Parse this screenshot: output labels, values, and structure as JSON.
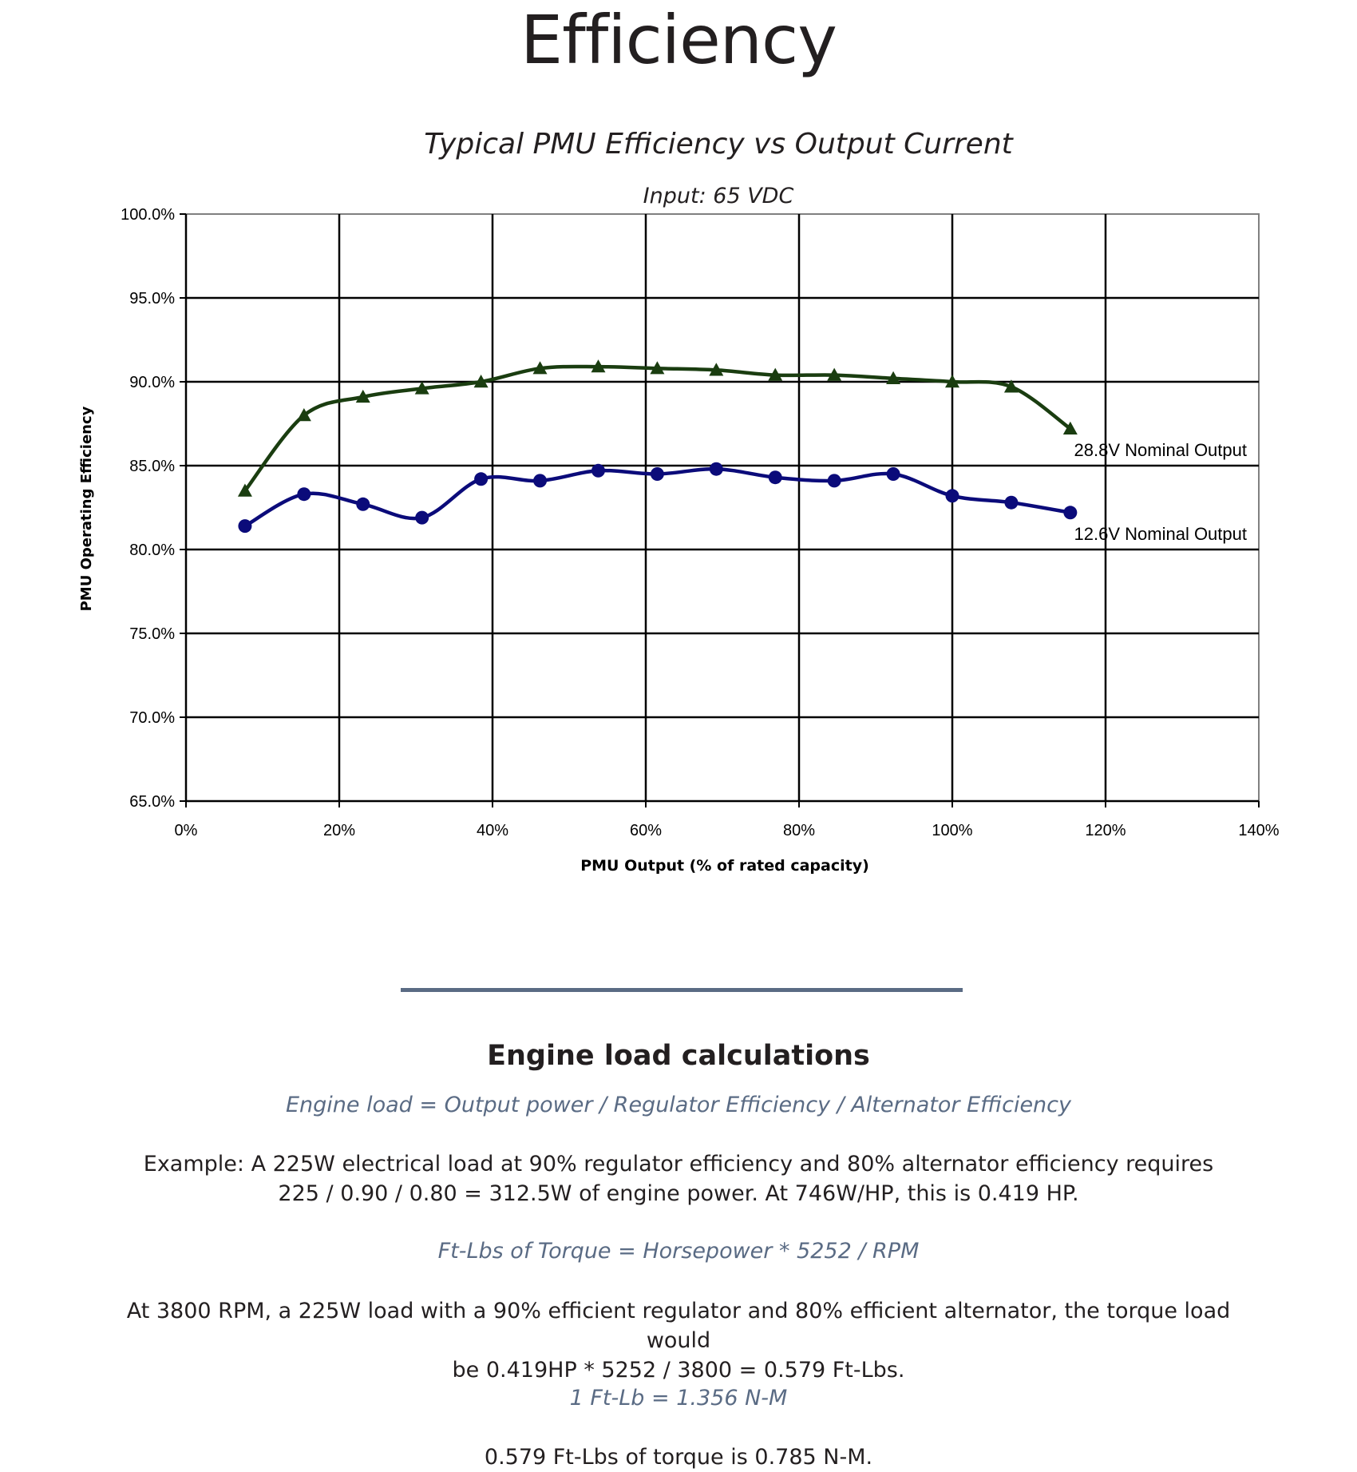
{
  "page": {
    "title": "Efficiency"
  },
  "chart_data": {
    "type": "line",
    "title": "Typical PMU Efficiency vs Output Current",
    "subtitle": "Input: 65 VDC",
    "xlabel": "PMU Output (% of rated capacity)",
    "ylabel": "PMU Operating Efficiency",
    "xlim": [
      0,
      140
    ],
    "ylim": [
      65,
      100
    ],
    "xticks": [
      0,
      20,
      40,
      60,
      80,
      100,
      120,
      140
    ],
    "xtick_labels": [
      "0%",
      "20%",
      "40%",
      "60%",
      "80%",
      "100%",
      "120%",
      "140%"
    ],
    "yticks": [
      65,
      70,
      75,
      80,
      85,
      90,
      95,
      100
    ],
    "ytick_labels": [
      "65.0%",
      "70.0%",
      "75.0%",
      "80.0%",
      "85.0%",
      "90.0%",
      "95.0%",
      "100.0%"
    ],
    "grid": true,
    "series": [
      {
        "name": "28.8V Nominal Output",
        "color": "#1a3d10",
        "marker": "triangle",
        "x": [
          7.7,
          15.4,
          23.1,
          30.8,
          38.5,
          46.2,
          53.8,
          61.5,
          69.2,
          76.9,
          84.6,
          92.3,
          100,
          107.7,
          115.4
        ],
        "y": [
          83.5,
          88.0,
          89.1,
          89.6,
          90.0,
          90.8,
          90.9,
          90.8,
          90.7,
          90.4,
          90.4,
          90.2,
          90.0,
          89.7,
          87.2
        ]
      },
      {
        "name": "12.6V Nominal Output",
        "color": "#0b0b7a",
        "marker": "circle",
        "x": [
          7.7,
          15.4,
          23.1,
          30.8,
          38.5,
          46.2,
          53.8,
          61.5,
          69.2,
          76.9,
          84.6,
          92.3,
          100,
          107.7,
          115.4
        ],
        "y": [
          81.4,
          83.3,
          82.7,
          81.9,
          84.2,
          84.1,
          84.7,
          84.5,
          84.8,
          84.3,
          84.1,
          84.5,
          83.2,
          82.8,
          82.2
        ]
      }
    ]
  },
  "section": {
    "heading": "Engine load calculations",
    "formula1": "Engine load = Output power / Regulator Efficiency / Alternator Efficiency",
    "example_line1": "Example: A 225W electrical load at 90% regulator efficiency and 80% alternator efficiency requires",
    "example_line2": "225 / 0.90 / 0.80 = 312.5W of engine power. At 746W/HP, this is 0.419 HP.",
    "formula2": "Ft-Lbs of Torque = Horsepower * 5252 / RPM",
    "torque_line1": "At 3800 RPM, a 225W load with a 90% efficient regulator and 80% efficient alternator, the torque load would",
    "torque_line2": "be  0.419HP * 5252 / 3800 = 0.579 Ft-Lbs.",
    "formula3": "1 Ft-Lb = 1.356 N-M",
    "conversion": "0.579 Ft-Lbs of torque is 0.785 N-M."
  }
}
